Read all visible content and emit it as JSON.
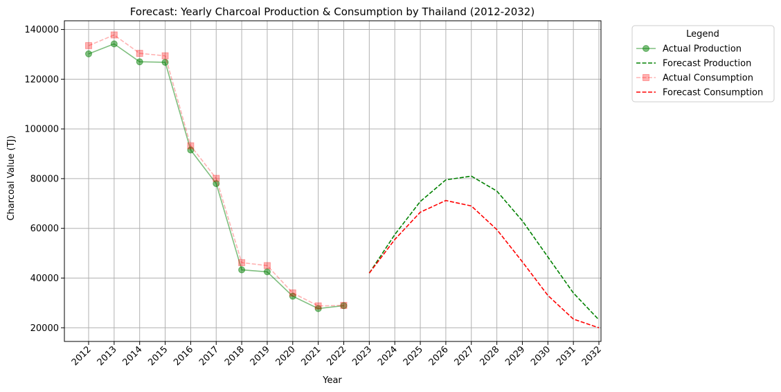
{
  "chart_data": {
    "type": "line",
    "title": "Forecast: Yearly Charcoal Production & Consumption by Thailand (2012-2032)",
    "xlabel": "Year",
    "ylabel": "Charcoal Value (TJ)",
    "categories": [
      "2012",
      "2013",
      "2014",
      "2015",
      "2016",
      "2017",
      "2018",
      "2019",
      "2020",
      "2021",
      "2022",
      "2023",
      "2024",
      "2025",
      "2026",
      "2027",
      "2028",
      "2029",
      "2030",
      "2031",
      "2032"
    ],
    "y_ticks": [
      20000,
      40000,
      60000,
      80000,
      100000,
      120000,
      140000
    ],
    "ylim": [
      14500,
      143500
    ],
    "grid": true,
    "legend": {
      "title": "Legend",
      "placement": "outside-top-right"
    },
    "series": [
      {
        "name": "Actual Production",
        "color": "#008000",
        "style": "solid",
        "marker": "circle",
        "alpha": 0.5,
        "x": [
          "2012",
          "2013",
          "2014",
          "2015",
          "2016",
          "2017",
          "2018",
          "2019",
          "2020",
          "2021",
          "2022"
        ],
        "values": [
          130200,
          134200,
          127000,
          126800,
          91500,
          78000,
          43300,
          42500,
          32700,
          27700,
          28900
        ]
      },
      {
        "name": "Forecast Production",
        "color": "#008000",
        "style": "dashed",
        "marker": "none",
        "alpha": 1,
        "x": [
          "2023",
          "2024",
          "2025",
          "2026",
          "2027",
          "2028",
          "2029",
          "2030",
          "2031",
          "2032"
        ],
        "values": [
          42000,
          57500,
          70800,
          79500,
          81000,
          75000,
          63000,
          48500,
          34000,
          23200
        ]
      },
      {
        "name": "Actual Consumption",
        "color": "#ff0000",
        "style": "dashed",
        "marker": "square",
        "alpha": 0.3,
        "x": [
          "2012",
          "2013",
          "2014",
          "2015",
          "2016",
          "2017",
          "2018",
          "2019",
          "2020",
          "2021",
          "2022"
        ],
        "values": [
          133500,
          137800,
          130400,
          129400,
          93200,
          80100,
          46200,
          45000,
          34000,
          28800,
          29000
        ]
      },
      {
        "name": "Forecast Consumption",
        "color": "#ff0000",
        "style": "dashed",
        "marker": "none",
        "alpha": 1,
        "x": [
          "2023",
          "2024",
          "2025",
          "2026",
          "2027",
          "2028",
          "2029",
          "2030",
          "2031",
          "2032"
        ],
        "values": [
          42000,
          55500,
          66500,
          71200,
          69000,
          59500,
          46500,
          33000,
          23500,
          20000
        ]
      }
    ]
  }
}
